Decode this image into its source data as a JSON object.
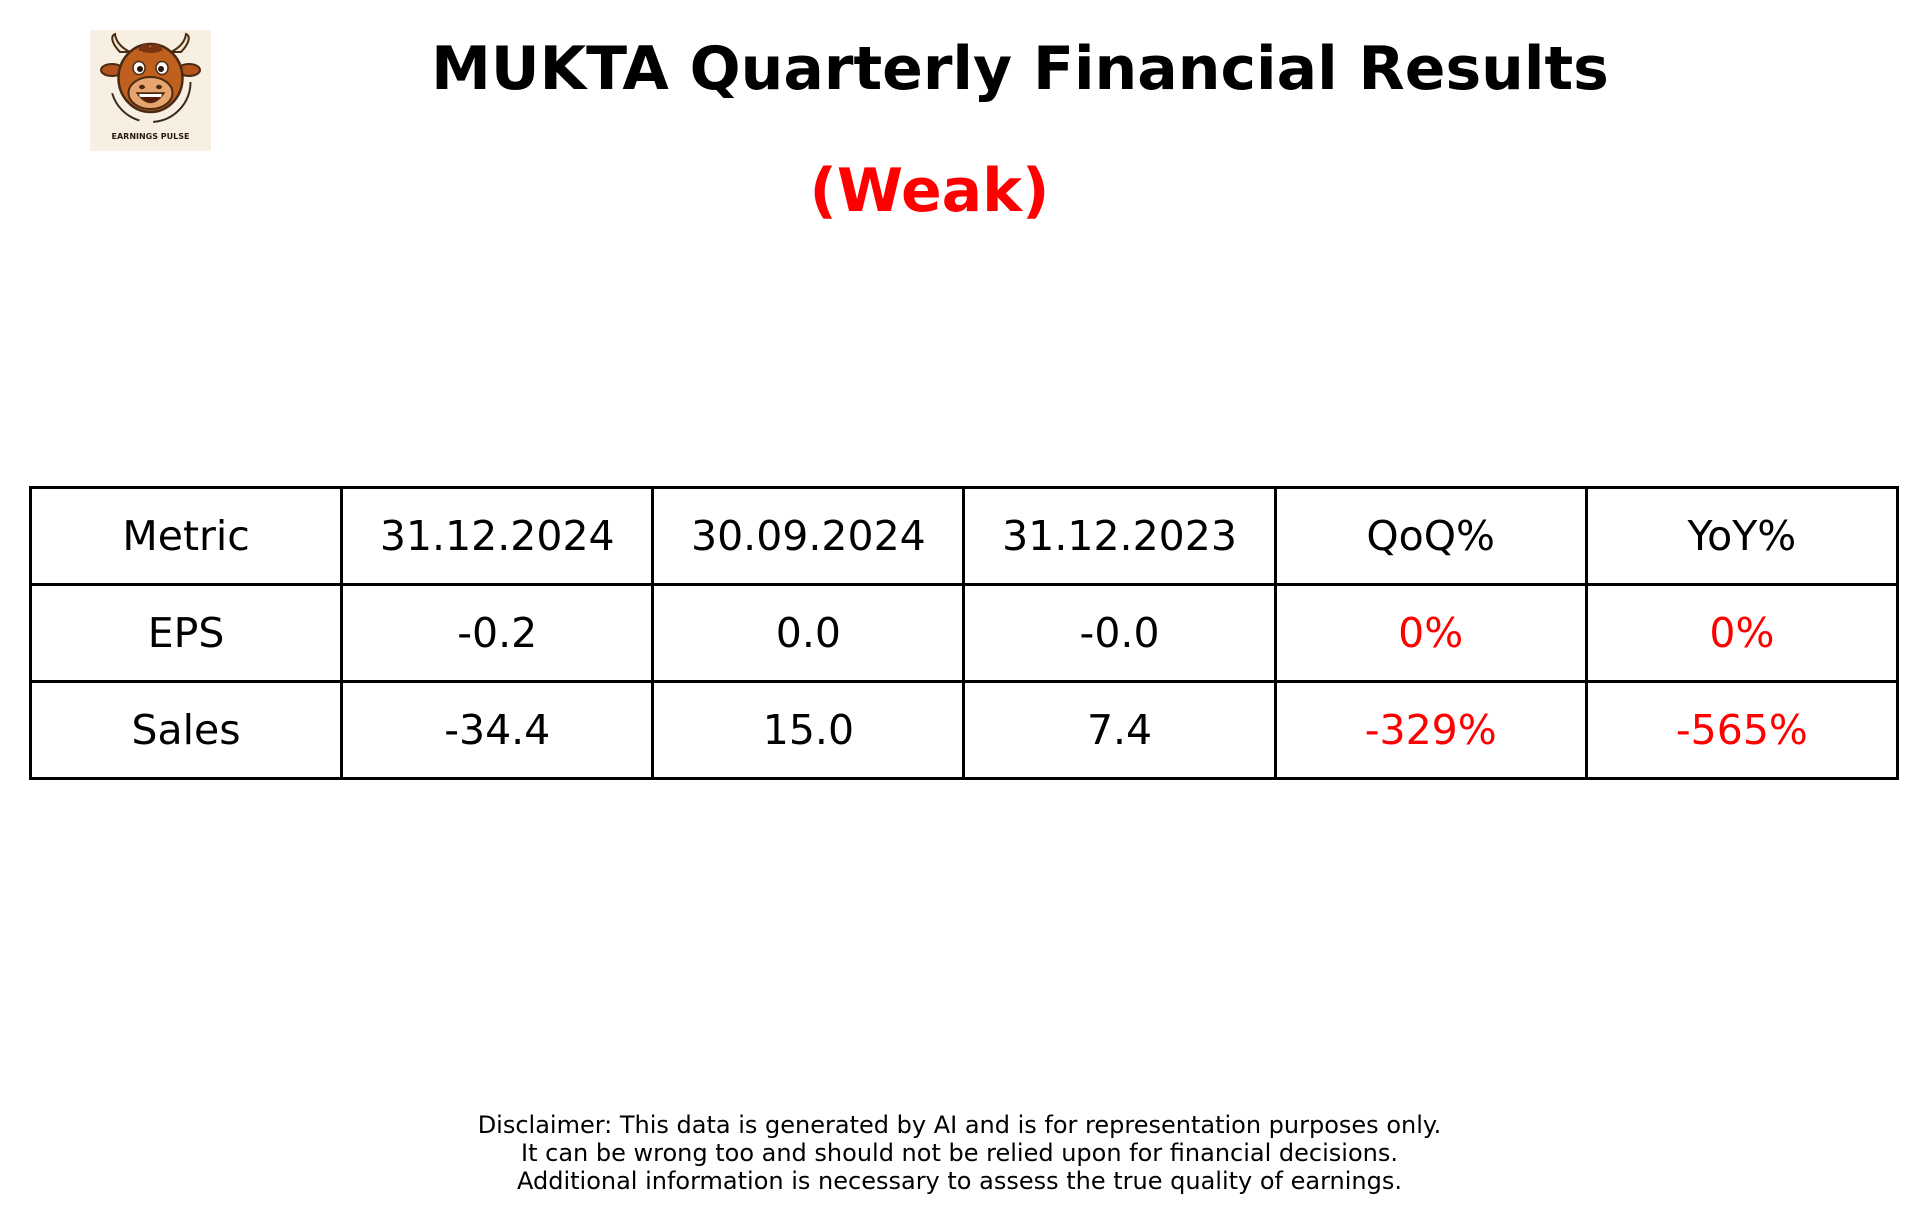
{
  "logo": {
    "caption": "EARNINGS PULSE"
  },
  "chart_data": {
    "type": "table",
    "title": "MUKTA Quarterly Financial Results",
    "subtitle": "(Weak)",
    "columns": [
      "Metric",
      "31.12.2024",
      "30.09.2024",
      "31.12.2023",
      "QoQ%",
      "YoY%"
    ],
    "rows": [
      [
        "EPS",
        "-0.2",
        "0.0",
        "-0.0",
        "0%",
        "0%"
      ],
      [
        "Sales",
        "-34.4",
        "15.0",
        "7.4",
        "-329%",
        "-565%"
      ]
    ],
    "colors": {
      "subtitle": "#ff0000",
      "change_values": "#ff0000",
      "text": "#000000",
      "grid": "#000000"
    }
  },
  "disclaimer": [
    "Disclaimer: This data is generated by AI and is for representation purposes only.",
    "It can be wrong too and should not be relied upon for financial decisions.",
    "Additional information is necessary to assess the true quality of earnings."
  ]
}
